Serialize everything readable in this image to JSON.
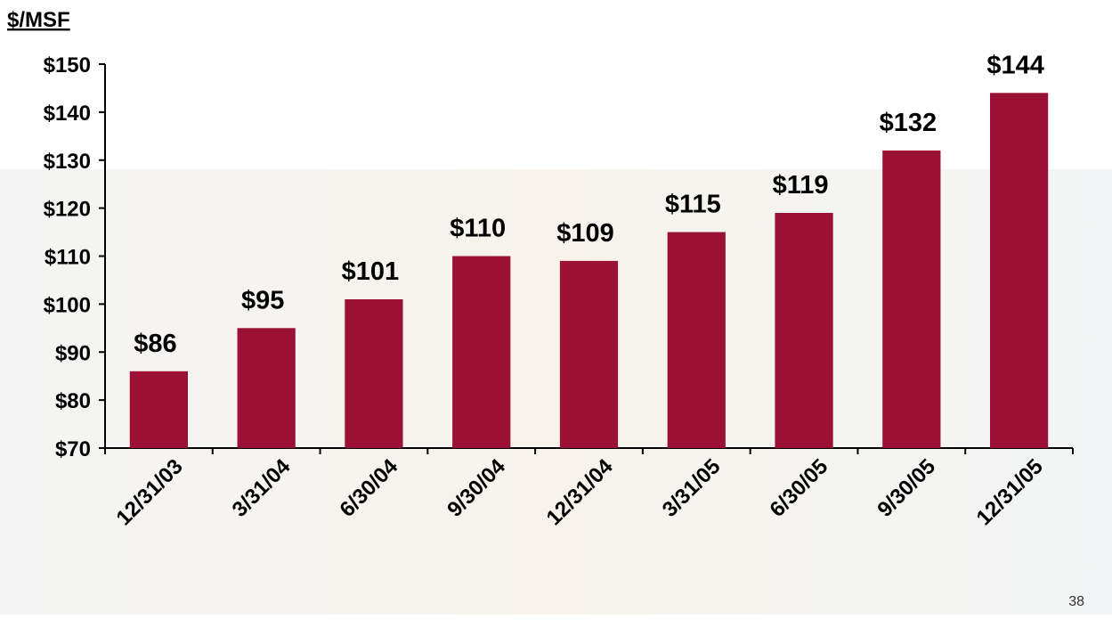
{
  "chart_data": {
    "type": "bar",
    "ylabel": "$/MSF",
    "categories": [
      "12/31/03",
      "3/31/04",
      "6/30/04",
      "9/30/04",
      "12/31/04",
      "3/31/05",
      "6/30/05",
      "9/30/05",
      "12/31/05"
    ],
    "values": [
      86,
      95,
      101,
      110,
      109,
      115,
      119,
      132,
      144
    ],
    "value_labels": [
      "$86",
      "$95",
      "$101",
      "$110",
      "$109",
      "$115",
      "$119",
      "$132",
      "$144"
    ],
    "color": "#9b1035",
    "ylim": [
      70,
      150
    ],
    "yticks": [
      {
        "value": 70,
        "label": "$70"
      },
      {
        "value": 80,
        "label": "$80"
      },
      {
        "value": 90,
        "label": "$90"
      },
      {
        "value": 100,
        "label": "$100"
      },
      {
        "value": 110,
        "label": "$110"
      },
      {
        "value": 120,
        "label": "$120"
      },
      {
        "value": 130,
        "label": "$130"
      },
      {
        "value": 140,
        "label": "$140"
      },
      {
        "value": 150,
        "label": "$150"
      }
    ],
    "grid": false
  },
  "page_number": "38"
}
